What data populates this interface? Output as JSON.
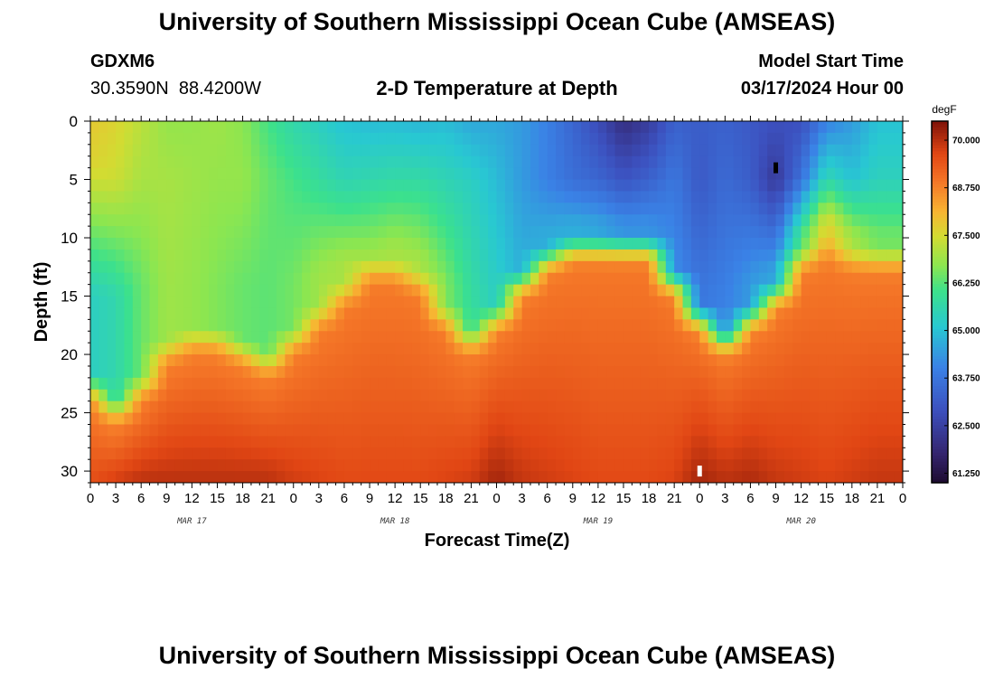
{
  "page": {
    "title_top": "University of Southern Mississippi Ocean Cube (AMSEAS)",
    "title_bottom": "University of Southern Mississippi Ocean Cube (AMSEAS)",
    "station": "GDXM6",
    "coords": "30.3590N  88.4200W",
    "center_title": "2-D Temperature at Depth",
    "start_label": "Model Start Time",
    "start_value": "03/17/2024 Hour 00"
  },
  "chart_data": {
    "type": "heatmap",
    "title": "2-D Temperature at Depth",
    "xlabel": "Forecast Time(Z)",
    "ylabel": "Depth (ft)",
    "x_range_hours": [
      0,
      96
    ],
    "y_range_ft": [
      0,
      31
    ],
    "x_tick_labels": [
      "0",
      "3",
      "6",
      "9",
      "12",
      "15",
      "18",
      "21",
      "0",
      "3",
      "6",
      "9",
      "12",
      "15",
      "18",
      "21",
      "0",
      "3",
      "6",
      "9",
      "12",
      "15",
      "18",
      "21",
      "0",
      "3",
      "6",
      "9",
      "12",
      "15",
      "18",
      "21",
      "0"
    ],
    "y_ticks": [
      0,
      5,
      10,
      15,
      20,
      25,
      30
    ],
    "date_labels": [
      {
        "text": "MAR 17",
        "hour": 12
      },
      {
        "text": "MAR 18",
        "hour": 36
      },
      {
        "text": "MAR 19",
        "hour": 60
      },
      {
        "text": "MAR 20",
        "hour": 84
      }
    ],
    "colorbar": {
      "unit": "degF",
      "min": 61.0,
      "max": 70.5,
      "ticks": [
        "70.000",
        "68.750",
        "67.500",
        "66.250",
        "65.000",
        "63.750",
        "62.500",
        "61.250"
      ]
    },
    "columns": [
      {
        "hour": 0,
        "top": 67.8,
        "surf": 67.6,
        "zs": 4,
        "mid": 65.3,
        "zm": 15,
        "zb": 22,
        "bot": 69.5
      },
      {
        "hour": 3,
        "top": 67.6,
        "surf": 67.4,
        "zs": 5,
        "mid": 65.6,
        "zm": 15,
        "zb": 24,
        "bot": 69.8
      },
      {
        "hour": 6,
        "top": 67.2,
        "surf": 67.0,
        "zs": 5,
        "mid": 66.4,
        "zm": 14,
        "zb": 22,
        "bot": 70.0
      },
      {
        "hour": 9,
        "top": 66.8,
        "surf": 67.0,
        "zs": 5,
        "mid": 66.9,
        "zm": 15,
        "zb": 19,
        "bot": 70.0
      },
      {
        "hour": 12,
        "top": 66.8,
        "surf": 66.9,
        "zs": 5,
        "mid": 66.8,
        "zm": 14,
        "zb": 18,
        "bot": 70.0
      },
      {
        "hour": 15,
        "top": 66.9,
        "surf": 66.8,
        "zs": 5,
        "mid": 66.6,
        "zm": 14,
        "zb": 18,
        "bot": 70.0
      },
      {
        "hour": 18,
        "top": 66.7,
        "surf": 66.8,
        "zs": 5,
        "mid": 66.4,
        "zm": 14,
        "zb": 19,
        "bot": 70.0
      },
      {
        "hour": 21,
        "top": 66.1,
        "surf": 66.4,
        "zs": 5,
        "mid": 66.3,
        "zm": 14,
        "zb": 20,
        "bot": 70.0
      },
      {
        "hour": 24,
        "top": 65.6,
        "surf": 66.1,
        "zs": 5,
        "mid": 66.5,
        "zm": 14,
        "zb": 18,
        "bot": 69.8
      },
      {
        "hour": 27,
        "top": 65.3,
        "surf": 65.8,
        "zs": 5,
        "mid": 66.9,
        "zm": 13,
        "zb": 16,
        "bot": 69.7
      },
      {
        "hour": 30,
        "top": 65.0,
        "surf": 65.5,
        "zs": 5,
        "mid": 67.0,
        "zm": 12,
        "zb": 14,
        "bot": 69.6
      },
      {
        "hour": 33,
        "top": 64.9,
        "surf": 65.6,
        "zs": 5,
        "mid": 67.0,
        "zm": 12,
        "zb": 12,
        "bot": 69.6
      },
      {
        "hour": 36,
        "top": 64.9,
        "surf": 65.7,
        "zs": 5,
        "mid": 67.0,
        "zm": 11,
        "zb": 12,
        "bot": 69.6
      },
      {
        "hour": 39,
        "top": 64.8,
        "surf": 65.7,
        "zs": 5,
        "mid": 67.0,
        "zm": 12,
        "zb": 13,
        "bot": 69.6
      },
      {
        "hour": 42,
        "top": 64.9,
        "surf": 65.5,
        "zs": 5,
        "mid": 66.6,
        "zm": 14,
        "zb": 16,
        "bot": 69.7
      },
      {
        "hour": 45,
        "top": 64.6,
        "surf": 65.3,
        "zs": 5,
        "mid": 65.8,
        "zm": 15,
        "zb": 18,
        "bot": 69.8
      },
      {
        "hour": 48,
        "top": 64.6,
        "surf": 64.9,
        "zs": 5,
        "mid": 65.3,
        "zm": 15,
        "zb": 16,
        "bot": 70.2
      },
      {
        "hour": 51,
        "top": 64.4,
        "surf": 64.4,
        "zs": 5,
        "mid": 64.7,
        "zm": 12,
        "zb": 13,
        "bot": 69.9
      },
      {
        "hour": 54,
        "top": 64.0,
        "surf": 64.0,
        "zs": 5,
        "mid": 64.7,
        "zm": 10,
        "zb": 11,
        "bot": 69.8
      },
      {
        "hour": 57,
        "top": 63.4,
        "surf": 63.6,
        "zs": 5,
        "mid": 64.7,
        "zm": 9,
        "zb": 10,
        "bot": 69.7
      },
      {
        "hour": 60,
        "top": 62.8,
        "surf": 63.4,
        "zs": 5,
        "mid": 64.6,
        "zm": 9,
        "zb": 10,
        "bot": 69.6
      },
      {
        "hour": 63,
        "top": 62.0,
        "surf": 63.0,
        "zs": 5,
        "mid": 64.3,
        "zm": 9,
        "zb": 10,
        "bot": 69.6
      },
      {
        "hour": 66,
        "top": 62.4,
        "surf": 63.3,
        "zs": 5,
        "mid": 64.3,
        "zm": 9,
        "zb": 10,
        "bot": 69.6
      },
      {
        "hour": 69,
        "top": 63.3,
        "surf": 63.8,
        "zs": 5,
        "mid": 64.2,
        "zm": 12,
        "zb": 13,
        "bot": 69.7
      },
      {
        "hour": 72,
        "top": 63.2,
        "surf": 63.1,
        "zs": 5,
        "mid": 63.8,
        "zm": 15,
        "zb": 16,
        "bot": 70.2
      },
      {
        "hour": 75,
        "top": 63.3,
        "surf": 63.5,
        "zs": 5,
        "mid": 64.0,
        "zm": 15,
        "zb": 18,
        "bot": 70.0
      },
      {
        "hour": 78,
        "top": 63.1,
        "surf": 63.2,
        "zs": 5,
        "mid": 64.4,
        "zm": 14,
        "zb": 16,
        "bot": 70.1
      },
      {
        "hour": 81,
        "top": 62.9,
        "surf": 62.3,
        "zs": 5,
        "mid": 64.6,
        "zm": 13,
        "zb": 14,
        "bot": 69.9
      },
      {
        "hour": 84,
        "top": 62.9,
        "surf": 63.7,
        "zs": 5,
        "mid": 66.2,
        "zm": 10,
        "zb": 11,
        "bot": 69.8
      },
      {
        "hour": 87,
        "top": 64.0,
        "surf": 65.6,
        "zs": 5,
        "mid": 67.8,
        "zm": 9,
        "zb": 10,
        "bot": 69.7
      },
      {
        "hour": 90,
        "top": 64.4,
        "surf": 65.0,
        "zs": 5,
        "mid": 67.0,
        "zm": 10,
        "zb": 11,
        "bot": 69.8
      },
      {
        "hour": 93,
        "top": 65.0,
        "surf": 65.4,
        "zs": 5,
        "mid": 66.5,
        "zm": 10,
        "zb": 11,
        "bot": 69.9
      },
      {
        "hour": 96,
        "top": 65.0,
        "surf": 65.4,
        "zs": 5,
        "mid": 66.5,
        "zm": 10,
        "zb": 11,
        "bot": 69.9
      }
    ],
    "markers": [
      {
        "hour": 72,
        "depth": 30,
        "color": "#ffffff"
      },
      {
        "hour": 81,
        "depth": 4,
        "color": "#000000"
      }
    ]
  }
}
